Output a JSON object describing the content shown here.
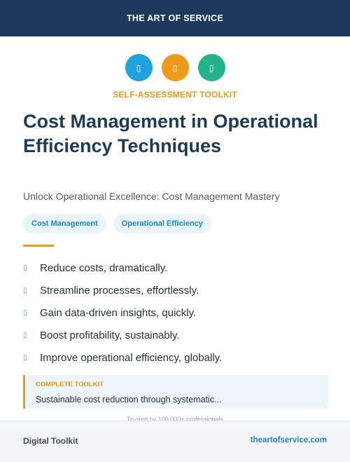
{
  "header": {
    "brand": "THE ART OF SERVICE"
  },
  "icons": [
    {
      "name": "box",
      "glyph": "▯",
      "color": "#1fa2de"
    },
    {
      "name": "box",
      "glyph": "▯",
      "color": "#f09a1c"
    },
    {
      "name": "box",
      "glyph": "▯",
      "color": "#23b489"
    }
  ],
  "kicker": "SELF-ASSESSMENT TOOLKIT",
  "title": "Cost Management in Operational Efficiency Techniques",
  "subtitle": "Unlock Operational Excellence: Cost Management Mastery",
  "tags": [
    "Cost Management",
    "Operational Efficiency"
  ],
  "benefits": [
    "Reduce costs, dramatically.",
    "Streamline processes, effortlessly.",
    "Gain data-driven insights, quickly.",
    "Boost profitability, sustainably.",
    "Improve operational efficiency, globally."
  ],
  "check_glyph": "▯",
  "callout": {
    "label": "COMPLETE TOOLKIT",
    "text": "Sustainable cost reduction through systematic..."
  },
  "trusted": "Trusted by 100,000+ professionals",
  "footer": {
    "left": "Digital Toolkit",
    "right": "theartofservice.com"
  },
  "colors": {
    "navy": "#1b3a5c",
    "accent_orange": "#e89a1a",
    "link_blue": "#1d86c9",
    "check_green": "#1fb88a"
  }
}
